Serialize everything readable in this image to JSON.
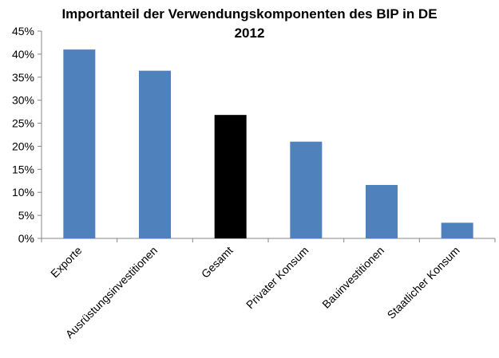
{
  "chart_data": {
    "type": "bar",
    "title_line1": "Importanteil der Verwendungskomponenten des BIP in DE",
    "title_line2": "2012",
    "xlabel": "",
    "ylabel": "",
    "categories": [
      "Exporte",
      "Ausrüstungsinvestitionen",
      "Gesamt",
      "Privater Konsum",
      "Bauinvestitionen",
      "Staatlicher Konsum"
    ],
    "values": [
      0.41,
      0.364,
      0.268,
      0.21,
      0.116,
      0.034
    ],
    "ylim": [
      0,
      0.45
    ],
    "yticks": [
      0,
      0.05,
      0.1,
      0.15,
      0.2,
      0.25,
      0.3,
      0.35,
      0.4,
      0.45
    ],
    "ytick_labels": [
      "0%",
      "5%",
      "10%",
      "15%",
      "20%",
      "25%",
      "30%",
      "35%",
      "40%",
      "45%"
    ],
    "bar_colors": [
      "#4f81bd",
      "#4f81bd",
      "#000000",
      "#4f81bd",
      "#4f81bd",
      "#4f81bd"
    ],
    "grid": false,
    "legend": "none"
  }
}
